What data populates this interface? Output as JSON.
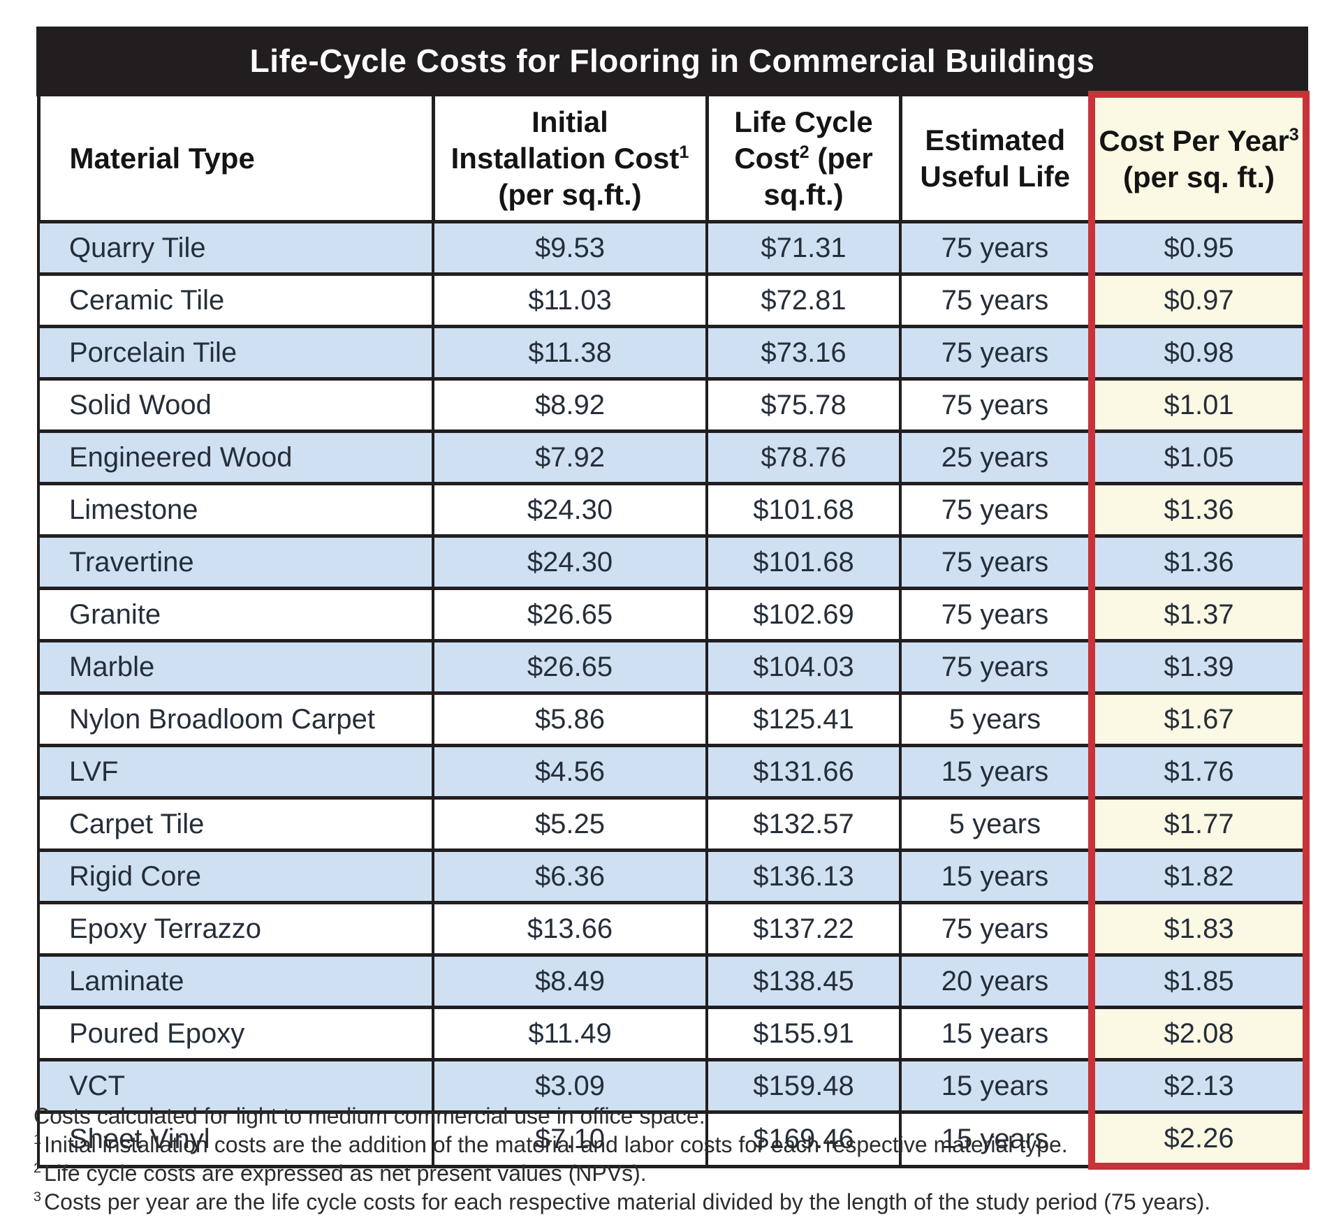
{
  "chart_data": {
    "type": "table",
    "title": "Life-Cycle Costs for Flooring in Commercial Buildings",
    "columns": [
      "Material Type",
      "Initial Installation Cost¹ (per sq.ft.)",
      "Life Cycle Cost² (per sq.ft.)",
      "Estimated Useful Life",
      "Cost Per Year³ (per sq. ft.)"
    ],
    "rows": [
      [
        "Quarry Tile",
        "$9.53",
        "$71.31",
        "75 years",
        "$0.95"
      ],
      [
        "Ceramic Tile",
        "$11.03",
        "$72.81",
        "75 years",
        "$0.97"
      ],
      [
        "Porcelain Tile",
        "$11.38",
        "$73.16",
        "75 years",
        "$0.98"
      ],
      [
        "Solid Wood",
        "$8.92",
        "$75.78",
        "75 years",
        "$1.01"
      ],
      [
        "Engineered Wood",
        "$7.92",
        "$78.76",
        "25 years",
        "$1.05"
      ],
      [
        "Limestone",
        "$24.30",
        "$101.68",
        "75 years",
        "$1.36"
      ],
      [
        "Travertine",
        "$24.30",
        "$101.68",
        "75 years",
        "$1.36"
      ],
      [
        "Granite",
        "$26.65",
        "$102.69",
        "75 years",
        "$1.37"
      ],
      [
        "Marble",
        "$26.65",
        "$104.03",
        "75 years",
        "$1.39"
      ],
      [
        "Nylon Broadloom Carpet",
        "$5.86",
        "$125.41",
        "5 years",
        "$1.67"
      ],
      [
        "LVF",
        "$4.56",
        "$131.66",
        "15 years",
        "$1.76"
      ],
      [
        "Carpet Tile",
        "$5.25",
        "$132.57",
        "5 years",
        "$1.77"
      ],
      [
        "Rigid Core",
        "$6.36",
        "$136.13",
        "15 years",
        "$1.82"
      ],
      [
        "Epoxy Terrazzo",
        "$13.66",
        "$137.22",
        "75 years",
        "$1.83"
      ],
      [
        "Laminate",
        "$8.49",
        "$138.45",
        "20 years",
        "$1.85"
      ],
      [
        "Poured Epoxy",
        "$11.49",
        "$155.91",
        "15 years",
        "$2.08"
      ],
      [
        "VCT",
        "$3.09",
        "$159.48",
        "15 years",
        "$2.13"
      ],
      [
        "Sheet Vinyl",
        "$7.10",
        "$169.46",
        "15 years",
        "$2.26"
      ]
    ]
  },
  "table": {
    "columns": [
      {
        "id": "material-type",
        "align": "left",
        "highlight": false,
        "lines": [
          {
            "text": "Material Type"
          }
        ]
      },
      {
        "id": "initial-installation-cost",
        "highlight": false,
        "lines": [
          {
            "text": "Initial"
          },
          {
            "text": "Installation Cost",
            "sup": "1"
          },
          {
            "text": "(per sq.ft.)"
          }
        ]
      },
      {
        "id": "life-cycle-cost",
        "highlight": false,
        "lines": [
          {
            "text": "Life Cycle"
          },
          {
            "text": "Cost",
            "sup": "2",
            "tail": " (per"
          },
          {
            "text": "sq.ft.)"
          }
        ]
      },
      {
        "id": "estimated-useful-life",
        "highlight": false,
        "lines": [
          {
            "text": "Estimated"
          },
          {
            "text": "Useful Life"
          }
        ]
      },
      {
        "id": "cost-per-year",
        "highlight": true,
        "lines": [
          {
            "text": "Cost Per Year",
            "sup": "3"
          },
          {
            "text": "(per sq. ft.)"
          }
        ]
      }
    ]
  },
  "footnotes": [
    {
      "sup": "",
      "text": "Costs calculated for light to medium commercial use in office space."
    },
    {
      "sup": "1",
      "text": "Initial installation costs are the addition of the material and labor costs for each respective material type."
    },
    {
      "sup": "2",
      "text": "Life cycle costs are expressed as net present values (NPVs)."
    },
    {
      "sup": "3",
      "text": "Costs per year are the life cycle costs for each respective material divided by the length of the study period (75 years)."
    }
  ],
  "colors": {
    "title_bg": "#221e20",
    "title_text": "#ffffff",
    "row_blue": "#cfe0f2",
    "highlight_cell_yellow": "#fbf8e3",
    "highlight_border_red": "#c8333a",
    "grid_black": "#221e20",
    "body_text": "#252e39"
  }
}
